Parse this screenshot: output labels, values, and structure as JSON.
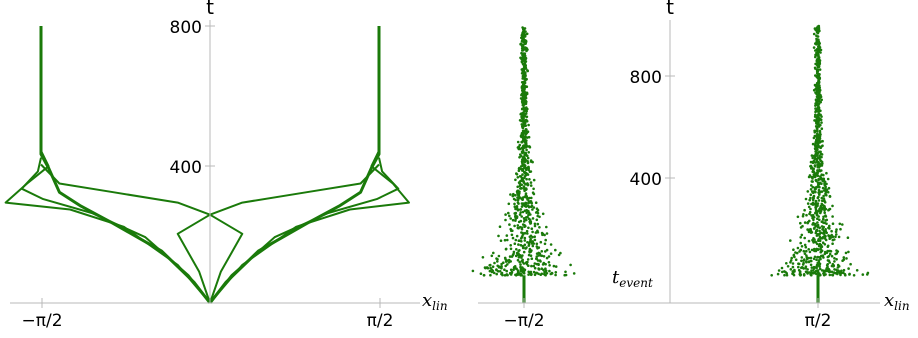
{
  "colors": {
    "series": "#1a7a0a",
    "axis": "#b8b8b8",
    "text": "#000000"
  },
  "chart_data": [
    {
      "type": "line",
      "panel": "left",
      "xlabel": "x",
      "xlabel_sub": "lin",
      "ylabel": "t",
      "xlim": [
        -2.05,
        2.0
      ],
      "ylim": [
        0,
        800
      ],
      "xtick_labels": [
        "−π/2",
        "π/2"
      ],
      "xtick_values": [
        -1.5708,
        1.5708
      ],
      "ytick_labels": [
        "400",
        "800"
      ],
      "ytick_values": [
        400,
        800
      ],
      "converged_positions": [
        -1.5708,
        1.5708
      ],
      "series": [
        {
          "points": [
            [
              0,
              0
            ],
            [
              -0.15,
              60
            ],
            [
              -0.45,
              150
            ],
            [
              -0.9,
              230
            ],
            [
              -1.2,
              280
            ],
            [
              -1.4,
              320
            ],
            [
              -1.5,
              390
            ],
            [
              -1.5708,
              430
            ],
            [
              -1.5708,
              800
            ]
          ]
        },
        {
          "points": [
            [
              0,
              0
            ],
            [
              0.15,
              60
            ],
            [
              0.45,
              150
            ],
            [
              0.9,
              230
            ],
            [
              1.2,
              280
            ],
            [
              1.4,
              320
            ],
            [
              1.5,
              390
            ],
            [
              1.5708,
              430
            ],
            [
              1.5708,
              800
            ]
          ]
        },
        {
          "points": [
            [
              0,
              0
            ],
            [
              -0.2,
              80
            ],
            [
              -0.6,
              190
            ],
            [
              -1.1,
              260
            ],
            [
              -1.55,
              300
            ],
            [
              -1.75,
              330
            ],
            [
              -1.6,
              380
            ],
            [
              -1.5708,
              420
            ]
          ]
        },
        {
          "points": [
            [
              0,
              0
            ],
            [
              0.2,
              80
            ],
            [
              0.6,
              190
            ],
            [
              1.1,
              260
            ],
            [
              1.55,
              300
            ],
            [
              1.75,
              330
            ],
            [
              1.6,
              380
            ],
            [
              1.5708,
              420
            ]
          ]
        },
        {
          "points": [
            [
              0,
              0
            ],
            [
              -0.3,
              110
            ],
            [
              -0.8,
              220
            ],
            [
              -1.3,
              270
            ],
            [
              -1.9,
              290
            ],
            [
              -1.7,
              345
            ],
            [
              -1.5,
              395
            ],
            [
              -1.5708,
              440
            ]
          ]
        },
        {
          "points": [
            [
              0,
              0
            ],
            [
              0.3,
              110
            ],
            [
              0.8,
              220
            ],
            [
              1.3,
              270
            ],
            [
              1.85,
              290
            ],
            [
              1.7,
              345
            ],
            [
              1.5,
              395
            ],
            [
              1.5708,
              440
            ]
          ]
        },
        {
          "points": [
            [
              0,
              0
            ],
            [
              -0.1,
              90
            ],
            [
              -0.3,
              200
            ],
            [
              0.0,
              255
            ],
            [
              0.3,
              290
            ],
            [
              0.9,
              320
            ],
            [
              1.4,
              345
            ],
            [
              1.5708,
              400
            ]
          ]
        },
        {
          "points": [
            [
              0,
              0
            ],
            [
              0.1,
              90
            ],
            [
              0.3,
              200
            ],
            [
              0.0,
              255
            ],
            [
              -0.3,
              290
            ],
            [
              -0.9,
              320
            ],
            [
              -1.4,
              345
            ],
            [
              -1.5708,
              400
            ]
          ]
        }
      ]
    },
    {
      "type": "scatter",
      "panel": "right",
      "xlabel": "x",
      "xlabel_sub": "lin",
      "ylabel": "t",
      "event_label": "t",
      "event_label_sub": "event",
      "xlim": [
        -2.0,
        2.0
      ],
      "ylim": [
        0,
        1000
      ],
      "xtick_labels": [
        "−π/2",
        "π/2"
      ],
      "xtick_values": [
        -1.5708,
        1.5708
      ],
      "ytick_labels": [
        "400",
        "800"
      ],
      "ytick_values": [
        400,
        800
      ],
      "t_event": 100,
      "cluster_centers": [
        -1.5708,
        1.5708
      ],
      "spread_at_event": 0.45,
      "spread_at_top": 0.03
    }
  ]
}
